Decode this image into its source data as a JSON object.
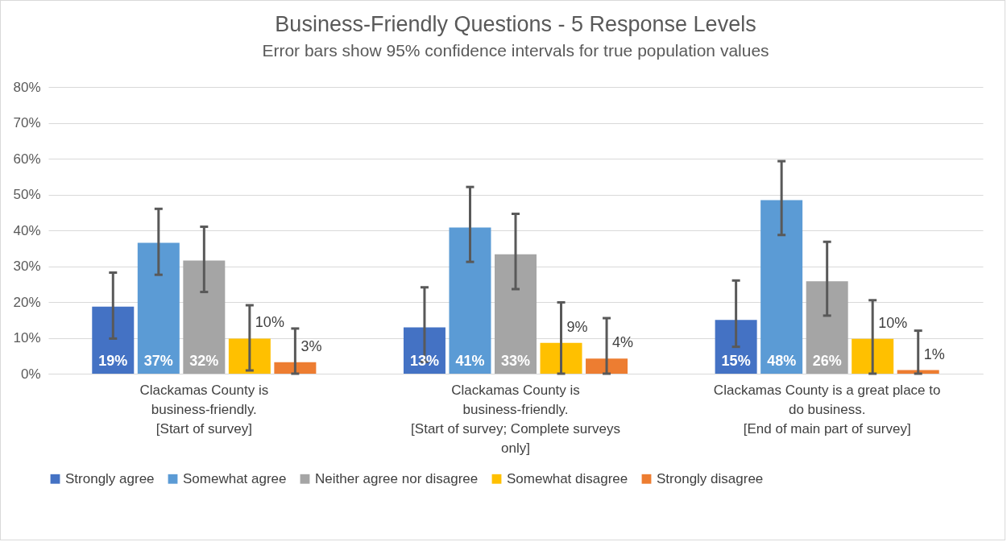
{
  "chart_data": {
    "type": "bar",
    "title": "Business-Friendly Questions - 5 Response Levels",
    "subtitle": "Error bars show 95% confidence intervals for true population values",
    "categories": [
      "Clackamas County is business-friendly. [Start of survey]",
      "Clackamas County is business-friendly. [Start of survey; Complete surveys only]",
      "Clackamas County is a great place to do business. [End of main part of survey]"
    ],
    "series": [
      {
        "name": "Strongly agree",
        "color": "#4472c4",
        "values": [
          18.7,
          12.9,
          15.0
        ],
        "errors": [
          [
            9.8,
            28.2
          ],
          [
            3.3,
            24.1
          ],
          [
            7.5,
            26.0
          ]
        ],
        "value_labels": [
          "19%",
          "13%",
          "15%"
        ]
      },
      {
        "name": "Somewhat agree",
        "color": "#5b9bd5",
        "values": [
          36.5,
          40.8,
          48.4
        ],
        "errors": [
          [
            27.6,
            46.0
          ],
          [
            31.2,
            52.1
          ],
          [
            38.7,
            59.3
          ]
        ],
        "value_labels": [
          "37%",
          "41%",
          "48%"
        ]
      },
      {
        "name": "Neither agree nor disagree",
        "color": "#a5a5a5",
        "values": [
          31.6,
          33.3,
          25.8
        ],
        "errors": [
          [
            22.8,
            41.0
          ],
          [
            23.6,
            44.6
          ],
          [
            16.2,
            36.8
          ]
        ],
        "value_labels": [
          "32%",
          "33%",
          "26%"
        ]
      },
      {
        "name": "Somewhat disagree",
        "color": "#ffc000",
        "values": [
          9.8,
          8.6,
          9.7
        ],
        "errors": [
          [
            0.9,
            19.1
          ],
          [
            0,
            19.9
          ],
          [
            0,
            20.5
          ]
        ],
        "value_labels": [
          "10%",
          "9%",
          "10%"
        ]
      },
      {
        "name": "Strongly disagree",
        "color": "#ed7d31",
        "values": [
          3.2,
          4.2,
          1.0
        ],
        "errors": [
          [
            0,
            12.6
          ],
          [
            0,
            15.5
          ],
          [
            0,
            12.0
          ]
        ],
        "value_labels": [
          "3%",
          "4%",
          "1%"
        ]
      }
    ],
    "ylim": [
      0,
      80
    ],
    "yticks": [
      {
        "value": 0,
        "label": "0%"
      },
      {
        "value": 10,
        "label": "10%"
      },
      {
        "value": 20,
        "label": "20%"
      },
      {
        "value": 30,
        "label": "30%"
      },
      {
        "value": 40,
        "label": "40%"
      },
      {
        "value": 50,
        "label": "50%"
      },
      {
        "value": 60,
        "label": "60%"
      },
      {
        "value": 70,
        "label": "70%"
      },
      {
        "value": 80,
        "label": "80%"
      }
    ],
    "grid": true,
    "legend": "bottom"
  }
}
